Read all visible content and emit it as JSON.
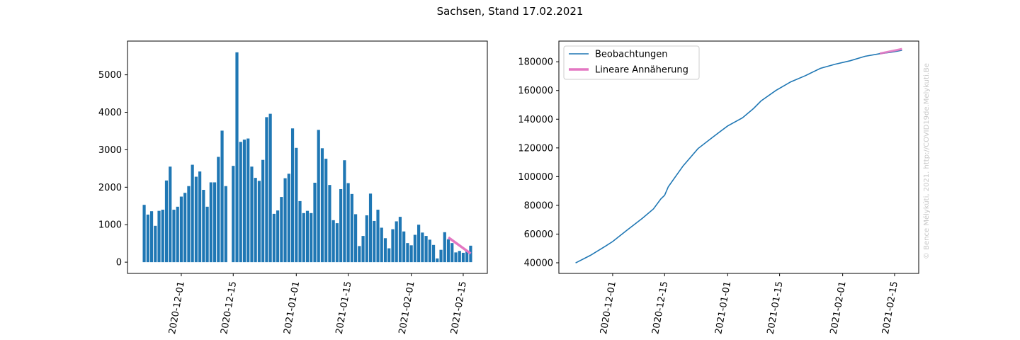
{
  "figure": {
    "title": "Sachsen, Stand 17.02.2021",
    "watermark": "© Bence Mélykúti, 2021. http://COVID19de.Melykuti.Be"
  },
  "chart_data": [
    {
      "type": "bar",
      "name": "daily-new-cases",
      "x_start": "2020-11-21",
      "x": [
        "2020-11-21",
        "2020-11-22",
        "2020-11-23",
        "2020-11-24",
        "2020-11-25",
        "2020-11-26",
        "2020-11-27",
        "2020-11-28",
        "2020-11-29",
        "2020-11-30",
        "2020-12-01",
        "2020-12-02",
        "2020-12-03",
        "2020-12-04",
        "2020-12-05",
        "2020-12-06",
        "2020-12-07",
        "2020-12-08",
        "2020-12-09",
        "2020-12-10",
        "2020-12-11",
        "2020-12-12",
        "2020-12-13",
        "2020-12-14",
        "2020-12-15",
        "2020-12-16",
        "2020-12-17",
        "2020-12-18",
        "2020-12-19",
        "2020-12-20",
        "2020-12-21",
        "2020-12-22",
        "2020-12-23",
        "2020-12-24",
        "2020-12-25",
        "2020-12-26",
        "2020-12-27",
        "2020-12-28",
        "2020-12-29",
        "2020-12-30",
        "2020-12-31",
        "2021-01-01",
        "2021-01-02",
        "2021-01-03",
        "2021-01-04",
        "2021-01-05",
        "2021-01-06",
        "2021-01-07",
        "2021-01-08",
        "2021-01-09",
        "2021-01-10",
        "2021-01-11",
        "2021-01-12",
        "2021-01-13",
        "2021-01-14",
        "2021-01-15",
        "2021-01-16",
        "2021-01-17",
        "2021-01-18",
        "2021-01-19",
        "2021-01-20",
        "2021-01-21",
        "2021-01-22",
        "2021-01-23",
        "2021-01-24",
        "2021-01-25",
        "2021-01-26",
        "2021-01-27",
        "2021-01-28",
        "2021-01-29",
        "2021-01-30",
        "2021-01-31",
        "2021-02-01",
        "2021-02-02",
        "2021-02-03",
        "2021-02-04",
        "2021-02-05",
        "2021-02-06",
        "2021-02-07",
        "2021-02-08",
        "2021-02-09",
        "2021-02-10",
        "2021-02-11",
        "2021-02-12",
        "2021-02-13",
        "2021-02-14",
        "2021-02-15",
        "2021-02-16",
        "2021-02-17"
      ],
      "values": [
        1530,
        1270,
        1360,
        970,
        1370,
        1400,
        2180,
        2550,
        1400,
        1480,
        1750,
        1850,
        2030,
        2600,
        2280,
        2420,
        1930,
        1480,
        2130,
        2130,
        2810,
        3510,
        2030,
        0,
        2570,
        5600,
        3210,
        3270,
        3300,
        2550,
        2250,
        2170,
        2730,
        3870,
        3960,
        1290,
        1380,
        1740,
        2240,
        2360,
        3570,
        3050,
        1630,
        1310,
        1370,
        1310,
        2120,
        3530,
        3040,
        2760,
        2060,
        1120,
        1040,
        1950,
        2720,
        2110,
        1820,
        1280,
        430,
        700,
        1250,
        1830,
        1100,
        1400,
        920,
        640,
        370,
        880,
        1090,
        1210,
        820,
        510,
        450,
        730,
        1000,
        790,
        700,
        600,
        460,
        100,
        330,
        800,
        610,
        510,
        260,
        300,
        250,
        290,
        440
      ],
      "xlabel": "",
      "ylabel": "",
      "x_ticks": [
        "2020-12-01",
        "2020-12-15",
        "2021-01-01",
        "2021-01-15",
        "2021-02-01",
        "2021-02-15"
      ],
      "y_ticks": [
        0,
        1000,
        2000,
        3000,
        4000,
        5000
      ],
      "ylim": [
        -300,
        5900
      ],
      "bar_color": "#1f77b4",
      "fit": {
        "x": [
          "2021-02-11",
          "2021-02-17"
        ],
        "y": [
          660,
          230
        ],
        "color": "#e377c2"
      }
    },
    {
      "type": "line",
      "name": "cumulative-cases",
      "xlabel": "",
      "ylabel": "",
      "x_ticks": [
        "2020-12-01",
        "2020-12-15",
        "2021-01-01",
        "2021-01-15",
        "2021-02-01",
        "2021-02-15"
      ],
      "y_ticks": [
        40000,
        60000,
        80000,
        100000,
        120000,
        140000,
        160000,
        180000
      ],
      "ylim": [
        32600,
        194400
      ],
      "legend_position": "top-left",
      "series": [
        {
          "name": "Beobachtungen",
          "color": "#1f77b4",
          "x": [
            "2020-11-21",
            "2020-11-25",
            "2020-11-29",
            "2020-12-01",
            "2020-12-05",
            "2020-12-09",
            "2020-12-12",
            "2020-12-14",
            "2020-12-15",
            "2020-12-16",
            "2020-12-20",
            "2020-12-24",
            "2020-12-28",
            "2021-01-01",
            "2021-01-05",
            "2021-01-08",
            "2021-01-10",
            "2021-01-14",
            "2021-01-18",
            "2021-01-22",
            "2021-01-26",
            "2021-01-30",
            "2021-02-03",
            "2021-02-07",
            "2021-02-11",
            "2021-02-14",
            "2021-02-17"
          ],
          "values": [
            39900,
            45200,
            51500,
            54800,
            63000,
            71000,
            77500,
            84500,
            87000,
            93000,
            107500,
            119500,
            127500,
            135300,
            141000,
            147500,
            152700,
            160000,
            166000,
            170400,
            175400,
            178300,
            180700,
            183800,
            185600,
            186600,
            188000
          ]
        },
        {
          "name": "Lineare Annäherung",
          "color": "#e377c2",
          "x": [
            "2021-02-11",
            "2021-02-17"
          ],
          "values": [
            185700,
            188900
          ]
        }
      ]
    }
  ]
}
